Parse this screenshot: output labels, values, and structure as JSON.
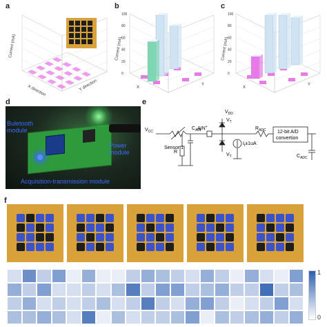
{
  "panels": {
    "a": {
      "letter": "a",
      "ylabel": "Current (mA)",
      "xlabel": "X direction",
      "zlabel": "Y direction"
    },
    "b": {
      "letter": "b",
      "ylabel": "Current (mA)",
      "ticks": [
        "0",
        "20",
        "40",
        "60",
        "80",
        "100"
      ],
      "xlabel": "X",
      "zlabel": "Y"
    },
    "c": {
      "letter": "c",
      "ylabel": "Current (mA)",
      "ticks": [
        "0",
        "20",
        "40",
        "60",
        "80",
        "100"
      ],
      "xlabel": "X",
      "zlabel": "Y"
    },
    "d": {
      "letter": "d",
      "bluetooth": "Buletooth\nmodule",
      "power": "Power\nmodule",
      "acq": "Acquisition-transmission module"
    },
    "e": {
      "letter": "e",
      "vcc": "V",
      "vcc_sub": "CC",
      "sensor": "Sensor 1",
      "cain": "C",
      "cain_sub": "AIN",
      "r": "R",
      "ain": "AIN",
      "ain_sup": "+",
      "vdd": "V",
      "vdd_sub": "DD",
      "vt": "V",
      "vt_sub": "T",
      "i": "I",
      "i_rest": "±1uA",
      "radc": "R",
      "radc_sub": "ADC",
      "adc_box": "12-bit A/D\nconvertion",
      "cadc": "C",
      "cadc_sub": "ADC"
    },
    "f": {
      "letter": "f",
      "cbar_top": "1",
      "cbar_bottom": "0"
    }
  },
  "colors": {
    "pink": "#e879e8",
    "teal": "#7fd6b3",
    "lightblue": "#cfe3f2",
    "board": "#d8a13a",
    "pcb": "#2f9a3c",
    "heat_dark": "#2d5fb0"
  },
  "chart_data": [
    {
      "type": "bar",
      "panel": "b",
      "ylabel": "Current (mA)",
      "ylim": [
        0,
        100
      ],
      "bars": [
        {
          "name": "tall-1",
          "value": 100,
          "color": "#cfe3f2"
        },
        {
          "name": "tall-2",
          "value": 60,
          "color": "#7fd6b3"
        },
        {
          "name": "tall-3",
          "value": 80,
          "color": "#cfe3f2"
        }
      ]
    },
    {
      "type": "bar",
      "panel": "c",
      "ylabel": "Current (mA)",
      "ylim": [
        0,
        100
      ],
      "bars": [
        {
          "name": "tall-1",
          "value": 100,
          "color": "#cfe3f2"
        },
        {
          "name": "tall-2",
          "value": 100,
          "color": "#cfe3f2"
        },
        {
          "name": "tall-3",
          "value": 95,
          "color": "#cfe3f2"
        },
        {
          "name": "tall-4",
          "value": 35,
          "color": "#e879e8"
        }
      ]
    }
  ],
  "heatmap": {
    "rows": 4,
    "cols": 20,
    "values": [
      [
        0.2,
        0.7,
        0.3,
        0.6,
        0.1,
        0.5,
        0.1,
        0.1,
        0.3,
        0.5,
        0.4,
        0.3,
        0.2,
        0.5,
        0.3,
        0.1,
        0.5,
        0.2,
        0.1,
        0.6
      ],
      [
        0.5,
        0.3,
        0.6,
        0.2,
        0.2,
        0.3,
        0.2,
        0.4,
        0.8,
        0.3,
        0.6,
        0.6,
        0.3,
        0.4,
        0.5,
        0.3,
        0.3,
        0.9,
        0.3,
        0.4
      ],
      [
        0.3,
        0.5,
        0.2,
        0.3,
        0.2,
        0.3,
        0.4,
        0.2,
        0.3,
        0.8,
        0.3,
        0.2,
        0.5,
        0.6,
        0.3,
        0.1,
        0.2,
        0.3,
        0.6,
        0.2
      ],
      [
        0.4,
        0.4,
        0.5,
        0.4,
        0.2,
        0.8,
        0.1,
        0.4,
        0.2,
        0.3,
        0.3,
        0.4,
        0.6,
        0.1,
        0.4,
        0.3,
        0.4,
        0.5,
        0.3,
        0.5
      ]
    ]
  }
}
